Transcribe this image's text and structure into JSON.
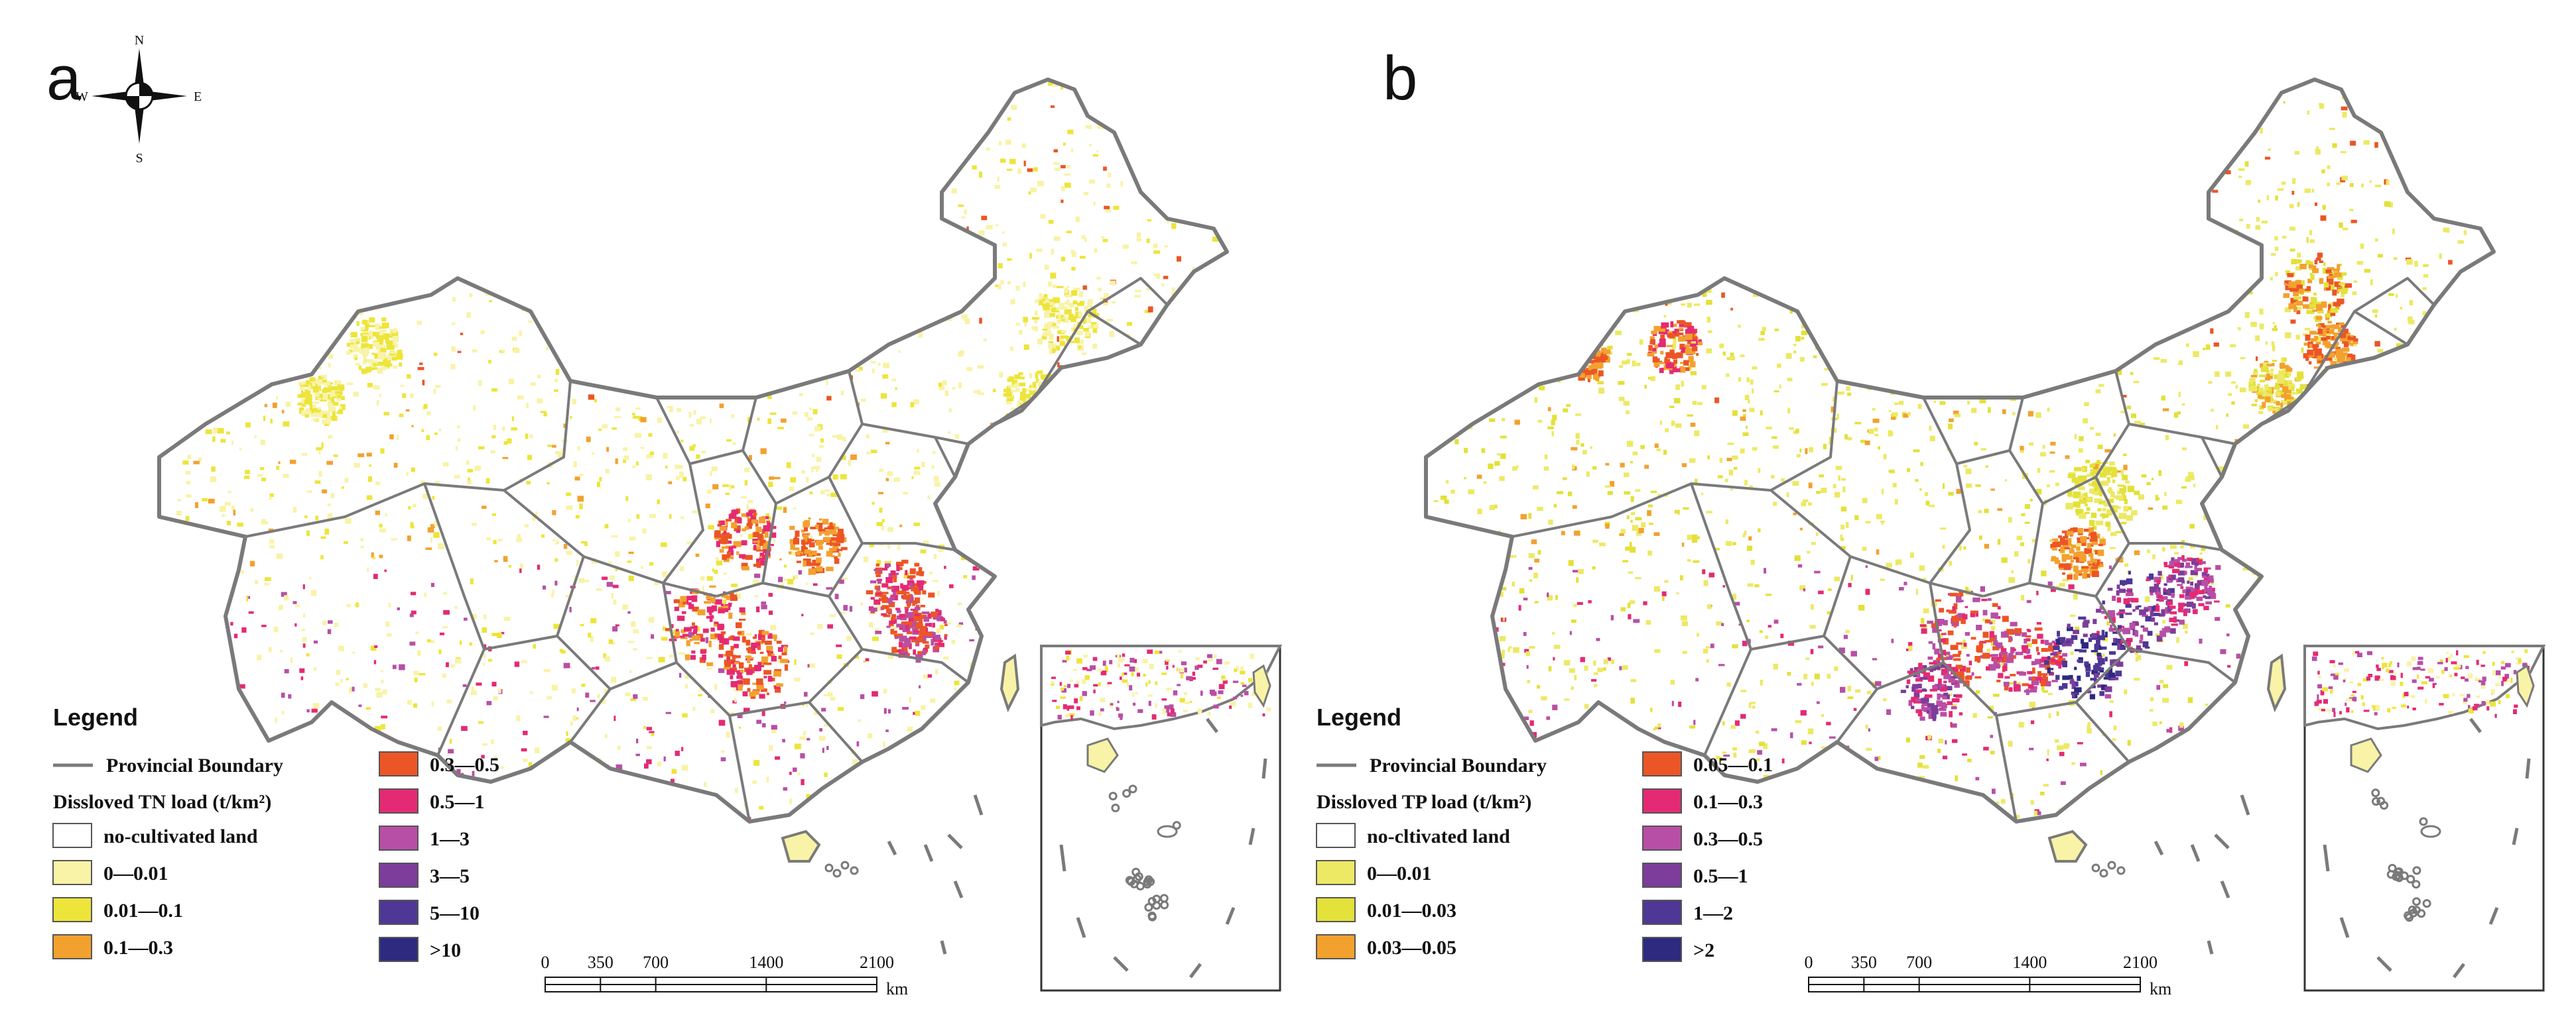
{
  "panels": [
    {
      "letter": "a",
      "legend": {
        "title": "Legend",
        "boundary_label": "Provincial Boundary",
        "load_label": "Dissloved TN load (t/km²)",
        "classes": [
          {
            "label": "no-cultivated land",
            "color": "#ffffff"
          },
          {
            "label": "0—0.01",
            "color": "#f8f3a6"
          },
          {
            "label": "0.01—0.1",
            "color": "#ede53a"
          },
          {
            "label": "0.1—0.3",
            "color": "#f3a12e"
          },
          {
            "label": "0.3—0.5",
            "color": "#ec5525"
          },
          {
            "label": "0.5—1",
            "color": "#e42a74"
          },
          {
            "label": "1—3",
            "color": "#b84fa6"
          },
          {
            "label": "3—5",
            "color": "#7d3d9a"
          },
          {
            "label": "5—10",
            "color": "#4e3795"
          },
          {
            "label": ">10",
            "color": "#2d2a7f"
          }
        ]
      },
      "scale": {
        "ticks": [
          "0",
          "350",
          "700",
          "1400",
          "2100"
        ],
        "unit": "km"
      }
    },
    {
      "letter": "b",
      "legend": {
        "title": "Legend",
        "boundary_label": "Provincial Boundary",
        "load_label": "Dissloved TP load (t/km²)",
        "classes": [
          {
            "label": "no-cltivated land",
            "color": "#ffffff"
          },
          {
            "label": "0—0.01",
            "color": "#ede964"
          },
          {
            "label": "0.01—0.03",
            "color": "#e3e13a"
          },
          {
            "label": "0.03—0.05",
            "color": "#f3a12e"
          },
          {
            "label": "0.05—0.1",
            "color": "#ec5525"
          },
          {
            "label": "0.1—0.3",
            "color": "#e42a74"
          },
          {
            "label": "0.3—0.5",
            "color": "#b84fa6"
          },
          {
            "label": "0.5—1",
            "color": "#7d3d9a"
          },
          {
            "label": "1—2",
            "color": "#4e3795"
          },
          {
            "label": ">2",
            "color": "#2d2a7f"
          }
        ]
      },
      "scale": {
        "ticks": [
          "0",
          "350",
          "700",
          "1400",
          "2100"
        ],
        "unit": "km"
      }
    }
  ],
  "compass": {
    "n": "N",
    "s": "S",
    "e": "E",
    "w": "W"
  },
  "colors": {
    "boundary": "#7a7a7a"
  }
}
